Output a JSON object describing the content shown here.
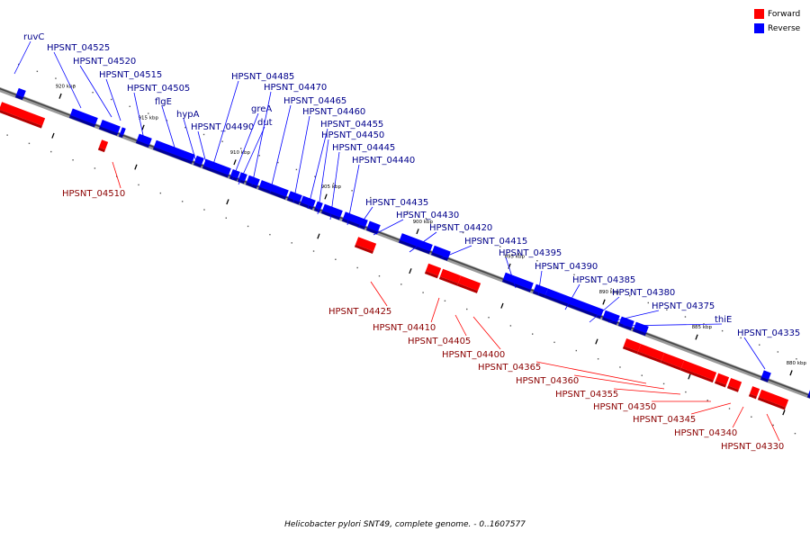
{
  "legend": {
    "forward_label": "Forward",
    "reverse_label": "Reverse",
    "forward_color": "#ff0000",
    "reverse_color": "#0000ff"
  },
  "caption": "Helicobacter pylori SNT49, complete genome. - 0..1607577",
  "ticks": [
    "920 kbp",
    "915 kbp",
    "910 kbp",
    "905 kbp",
    "900 kbp",
    "895 kbp",
    "890 kbp",
    "885 kbp",
    "880 kbp"
  ],
  "reverse_genes": [
    "ruvC",
    "HPSNT_04525",
    "HPSNT_04520",
    "HPSNT_04515",
    "HPSNT_04505",
    "flgE",
    "hypA",
    "HPSNT_04490",
    "HPSNT_04485",
    "greA",
    "dut",
    "HPSNT_04470",
    "HPSNT_04465",
    "HPSNT_04460",
    "HPSNT_04455",
    "HPSNT_04450",
    "HPSNT_04445",
    "HPSNT_04440",
    "HPSNT_04435",
    "HPSNT_04430",
    "HPSNT_04420",
    "HPSNT_04415",
    "HPSNT_04395",
    "HPSNT_04390",
    "HPSNT_04385",
    "HPSNT_04380",
    "HPSNT_04375",
    "thiE",
    "HPSNT_04335"
  ],
  "forward_genes": [
    "HPSNT_04510",
    "HPSNT_04425",
    "HPSNT_04410",
    "HPSNT_04405",
    "HPSNT_04400",
    "HPSNT_04365",
    "HPSNT_04360",
    "HPSNT_04355",
    "HPSNT_04350",
    "HPSNT_04345",
    "HPSNT_04340",
    "HPSNT_04330"
  ]
}
